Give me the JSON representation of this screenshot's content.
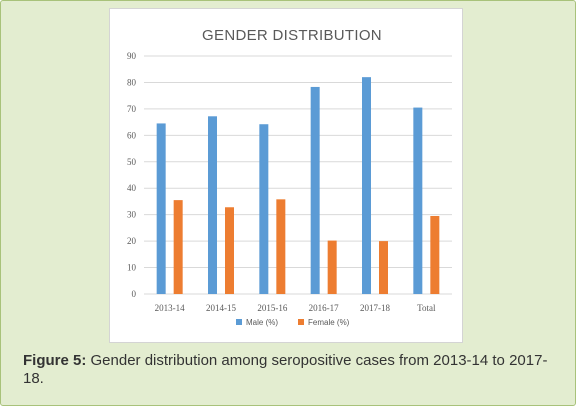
{
  "chart_data": {
    "type": "bar",
    "title": "GENDER DISTRIBUTION",
    "categories": [
      "2013-14",
      "2014-15",
      "2015-16",
      "2016-17",
      "2017-18",
      "Total"
    ],
    "series": [
      {
        "name": "Male (%)",
        "color": "#5b9bd5",
        "values": [
          64.5,
          67.2,
          64.2,
          78.3,
          82,
          70.5
        ]
      },
      {
        "name": "Female (%)",
        "color": "#ed7d31",
        "values": [
          35.5,
          32.8,
          35.8,
          20.2,
          20,
          29.5
        ]
      }
    ],
    "ylim": [
      0,
      90
    ],
    "yticks": [
      0,
      10,
      20,
      30,
      40,
      50,
      60,
      70,
      80,
      90
    ],
    "grid": true,
    "legend": "bottom"
  },
  "caption": {
    "label": "Figure 5:",
    "text": " Gender distribution among seropositive cases from 2013-14 to 2017-18."
  }
}
